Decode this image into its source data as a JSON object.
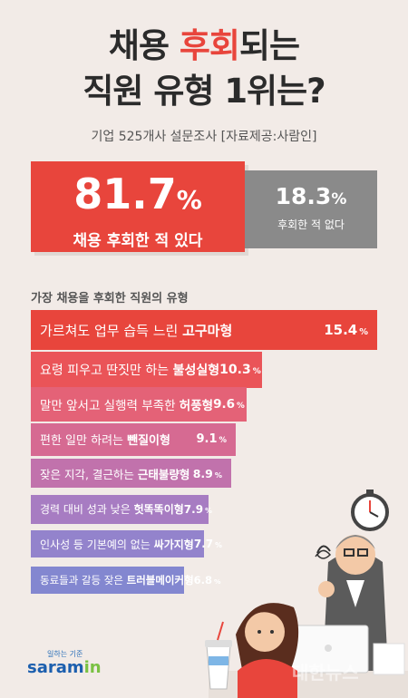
{
  "title": {
    "line1_pre": "채용 ",
    "line1_accent": "후회",
    "line1_post": "되는",
    "line2": "직원 유형 1위는?"
  },
  "subtitle": "기업 525개사 설문조사 [자료제공:사람인]",
  "summary": {
    "regret": {
      "value": "81.7",
      "unit": "%",
      "label": "채용 후회한 적 있다"
    },
    "no_regret": {
      "value": "18.3",
      "unit": "%",
      "label": "후회한 적 없다"
    }
  },
  "section_label": "가장 채용을 후회한 직원의 유형",
  "chart_data": {
    "type": "bar",
    "title": "가장 채용을 후회한 직원의 유형",
    "orientation": "horizontal",
    "unit": "%",
    "categories": [
      "가르쳐도 업무 습득 느린 고구마형",
      "요령 피우고 딴짓만 하는 불성실형",
      "말만 앞서고 실행력 부족한 허풍형",
      "편한 일만 하려는 뺀질이형",
      "잦은 지각, 결근하는 근태불량형",
      "경력 대비 성과 낮은 헛똑똑이형",
      "인사성 등 기본예의 없는 싸가지형",
      "동료들과 갈등 잦은 트러블메이커형"
    ],
    "labels_plain": [
      "가르쳐도 업무 습득 느린 ",
      "요령 피우고 딴짓만 하는 ",
      "말만 앞서고 실행력 부족한 ",
      "편한 일만 하려는 ",
      "잦은 지각, 결근하는 ",
      "경력 대비 성과 낮은 ",
      "인사성 등 기본예의 없는 ",
      "동료들과 갈등 잦은 "
    ],
    "labels_bold": [
      "고구마형",
      "불성실형",
      "허풍형",
      "뺀질이형",
      "근태불량형",
      "헛똑똑이형",
      "싸가지형",
      "트러블메이커형"
    ],
    "values": [
      15.4,
      10.3,
      9.6,
      9.1,
      8.9,
      7.9,
      7.7,
      6.8
    ],
    "value_labels": [
      "15.4",
      "10.3",
      "9.6",
      "9.1",
      "8.9",
      "7.9",
      "7.7",
      "6.8"
    ],
    "colors": [
      "#e8453c",
      "#ea5458",
      "#e46277",
      "#d66a92",
      "#c172ac",
      "#a77cc2",
      "#9383cc",
      "#8387d0"
    ]
  },
  "logo": {
    "tagline": "일하는 기준",
    "word_main": "saram",
    "word_accent": "in"
  },
  "watermark": "대한뉴스"
}
